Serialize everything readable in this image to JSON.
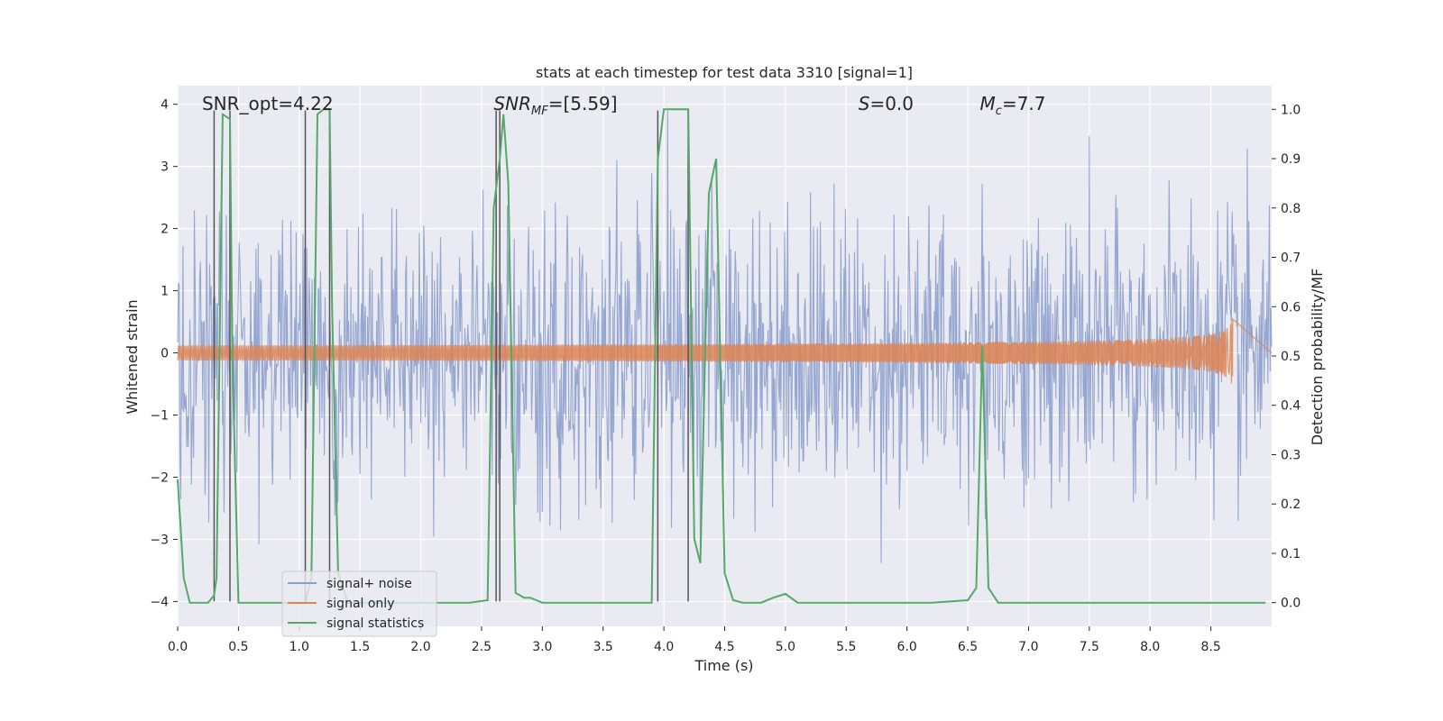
{
  "chart_data": {
    "type": "line",
    "title": "stats at each timestep for test data 3310 [signal=1]",
    "xlabel": "Time (s)",
    "ylabel": "Whitened strain",
    "ylabel_right": "Detection probability/MF",
    "xlim": [
      0.0,
      9.0
    ],
    "ylim": [
      -4.4,
      4.3
    ],
    "ylim_right": [
      -0.048,
      1.048
    ],
    "x_ticks": [
      "0.0",
      "0.5",
      "1.0",
      "1.5",
      "2.0",
      "2.5",
      "3.0",
      "3.5",
      "4.0",
      "4.5",
      "5.0",
      "5.5",
      "6.0",
      "6.5",
      "7.0",
      "7.5",
      "8.0",
      "8.5"
    ],
    "y_ticks": [
      "4",
      "3",
      "2",
      "1",
      "0",
      "−1",
      "−2",
      "−3",
      "−4"
    ],
    "y_ticks_right": [
      "1.0",
      "0.9",
      "0.8",
      "0.7",
      "0.6",
      "0.5",
      "0.4",
      "0.3",
      "0.2",
      "0.1",
      "0.0"
    ],
    "grid": true,
    "legend_position": "lower-left",
    "annotations": [
      {
        "text": "SNR_opt=4.22",
        "x": 0.2
      },
      {
        "text": "SNR",
        "sub": "MF",
        "tail": "=[5.59]",
        "x": 2.6
      },
      {
        "text": "S",
        "tail": "=0.0",
        "x": 5.6
      },
      {
        "text": "M",
        "sub": "c",
        "tail": "=7.7",
        "x": 6.6
      }
    ],
    "series": [
      {
        "name": "signal+ noise",
        "color": "#8c9fcc",
        "axis": "left",
        "description_kind": "noise",
        "sample_rate": 160
      },
      {
        "name": "signal only",
        "color": "#dd8452",
        "axis": "left",
        "chirp_end": 8.68,
        "chirp_peak_amplitude": 0.55
      },
      {
        "name": "signal statistics",
        "color": "#55a868",
        "axis": "right",
        "x": [
          0.0,
          0.05,
          0.1,
          0.2,
          0.25,
          0.3,
          0.32,
          0.37,
          0.43,
          0.45,
          0.5,
          0.6,
          0.7,
          0.8,
          0.9,
          1.0,
          1.05,
          1.1,
          1.15,
          1.2,
          1.25,
          1.27,
          1.32,
          1.4,
          1.5,
          1.6,
          1.7,
          1.8,
          1.9,
          2.0,
          2.2,
          2.4,
          2.55,
          2.6,
          2.65,
          2.68,
          2.72,
          2.78,
          2.85,
          2.9,
          2.95,
          3.0,
          3.2,
          3.5,
          3.9,
          3.95,
          4.0,
          4.1,
          4.2,
          4.25,
          4.3,
          4.37,
          4.43,
          4.5,
          4.57,
          4.65,
          4.8,
          4.9,
          5.0,
          5.1,
          5.2,
          5.4,
          5.8,
          6.2,
          6.5,
          6.57,
          6.62,
          6.67,
          6.75,
          7.0,
          8.0,
          8.6,
          8.95
        ],
        "values": [
          0.25,
          0.05,
          0.0,
          0.0,
          0.0,
          0.015,
          0.05,
          0.99,
          0.98,
          0.5,
          0.0,
          0.0,
          0.0,
          0.0,
          0.0,
          0.0,
          0.0,
          0.05,
          0.99,
          1.0,
          1.0,
          0.6,
          0.06,
          0.0,
          0.0,
          0.0,
          0.0,
          0.0,
          0.0,
          0.0,
          0.0,
          0.0,
          0.005,
          0.8,
          0.9,
          0.99,
          0.85,
          0.02,
          0.01,
          0.01,
          0.005,
          0.0,
          0.0,
          0.0,
          0.0,
          0.9,
          1.0,
          1.0,
          1.0,
          0.13,
          0.08,
          0.83,
          0.9,
          0.06,
          0.005,
          0.0,
          0.0,
          0.01,
          0.018,
          0.0,
          0.0,
          0.0,
          0.0,
          0.0,
          0.005,
          0.03,
          0.52,
          0.03,
          0.0,
          0.0,
          0.0,
          0.0,
          0.0
        ]
      }
    ],
    "vertical_markers": [
      0.3,
      0.43,
      1.05,
      1.25,
      2.62,
      2.65,
      3.95,
      4.2
    ],
    "vertical_marker_color": "#555555"
  }
}
